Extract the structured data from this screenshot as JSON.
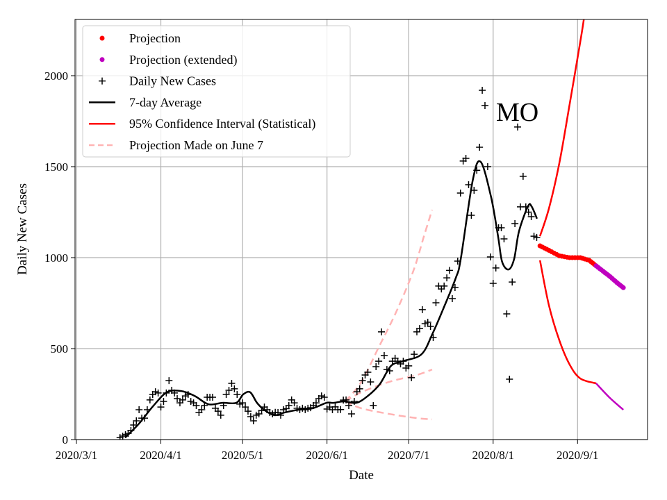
{
  "chart_data": {
    "type": "line",
    "annotation": "MO",
    "xlabel": "Date",
    "ylabel": "Daily New Cases",
    "x_unit": "days since 2020-03-01",
    "xlim_dates": [
      "2020-02-29",
      "2020-09-27"
    ],
    "ylim": [
      0,
      2310
    ],
    "grid": true,
    "legend_placement": "top-left",
    "x_ticks": [
      {
        "day": 0,
        "label": "2020/3/1"
      },
      {
        "day": 31,
        "label": "2020/4/1"
      },
      {
        "day": 61,
        "label": "2020/5/1"
      },
      {
        "day": 92,
        "label": "2020/6/1"
      },
      {
        "day": 122,
        "label": "2020/7/1"
      },
      {
        "day": 153,
        "label": "2020/8/1"
      },
      {
        "day": 184,
        "label": "2020/9/1"
      }
    ],
    "y_ticks": [
      {
        "value": 0,
        "label": "0"
      },
      {
        "value": 500,
        "label": "500"
      },
      {
        "value": 1000,
        "label": "1000"
      },
      {
        "value": 1500,
        "label": "1500"
      },
      {
        "value": 2000,
        "label": "2000"
      }
    ],
    "legend": [
      {
        "label": "Projection",
        "kind": "dot",
        "color": "#ff0000"
      },
      {
        "label": "Projection (extended)",
        "kind": "dot",
        "color": "#bf00bf"
      },
      {
        "label": "Daily New Cases",
        "kind": "plus",
        "color": "#000000"
      },
      {
        "label": "7-day Average",
        "kind": "line",
        "color": "#000000"
      },
      {
        "label": "95% Confidence Interval (Statistical)",
        "kind": "line",
        "color": "#ff0000"
      },
      {
        "label": "Projection Made on June 7",
        "kind": "dash",
        "color": "#ffb3b3"
      }
    ],
    "daily_new_cases": {
      "start_date": "2020-03-17",
      "start_day": 16,
      "values": [
        11,
        19,
        27,
        34,
        50,
        80,
        103,
        164,
        118,
        118,
        164,
        218,
        248,
        263,
        256,
        179,
        210,
        256,
        324,
        271,
        256,
        225,
        202,
        218,
        240,
        248,
        210,
        202,
        187,
        149,
        164,
        187,
        233,
        233,
        233,
        172,
        156,
        134,
        187,
        248,
        271,
        309,
        279,
        248,
        195,
        202,
        179,
        156,
        126,
        103,
        134,
        141,
        160,
        179,
        164,
        149,
        141,
        150,
        149,
        134,
        164,
        170,
        187,
        218,
        202,
        172,
        164,
        172,
        164,
        172,
        175,
        187,
        202,
        225,
        240,
        233,
        168,
        179,
        164,
        180,
        164,
        165,
        217,
        218,
        187,
        141,
        210,
        263,
        279,
        324,
        355,
        370,
        317,
        187,
        401,
        431,
        592,
        462,
        385,
        378,
        431,
        447,
        431,
        416,
        431,
        393,
        405,
        340,
        469,
        592,
        610,
        714,
        637,
        645,
        622,
        561,
        752,
        844,
        828,
        844,
        889,
        930,
        775,
        836,
        981,
        1355,
        1531,
        1546,
        1401,
        1233,
        1370,
        1480,
        1607,
        1920,
        1836,
        1500,
        1004,
        859,
        943,
        1164,
        1164,
        1103,
        691,
        332,
        866,
        1187,
        1718,
        1279,
        1447,
        1279,
        1250,
        1225,
        1118,
        1111
      ]
    },
    "seven_day_average": [
      [
        17.9,
        11
      ],
      [
        23,
        88
      ],
      [
        28.1,
        183
      ],
      [
        33.2,
        260
      ],
      [
        38.3,
        267
      ],
      [
        43.4,
        240
      ],
      [
        48.5,
        194
      ],
      [
        53.6,
        202
      ],
      [
        58.7,
        202
      ],
      [
        61.2,
        248
      ],
      [
        63.8,
        260
      ],
      [
        66.3,
        202
      ],
      [
        68.9,
        164
      ],
      [
        72.7,
        134
      ],
      [
        76.5,
        149
      ],
      [
        81.6,
        164
      ],
      [
        86.7,
        172
      ],
      [
        91.8,
        202
      ],
      [
        94.4,
        202
      ],
      [
        98.3,
        210
      ],
      [
        102.8,
        202
      ],
      [
        107,
        240
      ],
      [
        111.4,
        305
      ],
      [
        115.5,
        405
      ],
      [
        119.9,
        431
      ],
      [
        126.7,
        469
      ],
      [
        130.8,
        584
      ],
      [
        135.2,
        737
      ],
      [
        139.3,
        889
      ],
      [
        141.1,
        992
      ],
      [
        145.5,
        1424
      ],
      [
        148.4,
        1527
      ],
      [
        152.2,
        1336
      ],
      [
        154.8,
        1118
      ],
      [
        156.3,
        977
      ],
      [
        158.7,
        935
      ],
      [
        160.7,
        992
      ],
      [
        162.5,
        1145
      ],
      [
        165.8,
        1282
      ],
      [
        167.1,
        1282
      ],
      [
        169.1,
        1214
      ]
    ],
    "projection": [
      [
        170.2,
        1065
      ],
      [
        173.5,
        1040
      ],
      [
        177.3,
        1010
      ],
      [
        181.1,
        1000
      ],
      [
        185,
        1000
      ],
      [
        188.3,
        985
      ],
      [
        190.8,
        955
      ]
    ],
    "projection_extended": [
      [
        190.8,
        955
      ],
      [
        193.4,
        925
      ],
      [
        196,
        895
      ],
      [
        198.5,
        862
      ],
      [
        200.8,
        835
      ]
    ],
    "ci_upper": [
      [
        170.2,
        1118
      ],
      [
        173.5,
        1271
      ],
      [
        177.3,
        1519
      ],
      [
        181.1,
        1844
      ],
      [
        185,
        2187
      ],
      [
        186.3,
        2310
      ],
      [
        188,
        2500
      ]
    ],
    "ci_lower": [
      [
        170.2,
        985
      ],
      [
        173.5,
        737
      ],
      [
        177.3,
        546
      ],
      [
        181.1,
        412
      ],
      [
        185,
        336
      ],
      [
        190.8,
        309
      ]
    ],
    "ci_lower_extended": [
      [
        190.8,
        309
      ],
      [
        195.8,
        230
      ],
      [
        200.8,
        164
      ]
    ],
    "june7_upper": [
      [
        98.7,
        210
      ],
      [
        104.6,
        317
      ],
      [
        111,
        508
      ],
      [
        117.3,
        698
      ],
      [
        123.7,
        927
      ],
      [
        127.6,
        1118
      ],
      [
        130.6,
        1263
      ]
    ],
    "june7_mid": [
      [
        98.7,
        210
      ],
      [
        104.6,
        260
      ],
      [
        114.8,
        317
      ],
      [
        125,
        355
      ],
      [
        130.6,
        385
      ]
    ],
    "june7_lower": [
      [
        98.7,
        210
      ],
      [
        104.6,
        172
      ],
      [
        114.8,
        141
      ],
      [
        125,
        118
      ],
      [
        130.6,
        111
      ]
    ]
  }
}
